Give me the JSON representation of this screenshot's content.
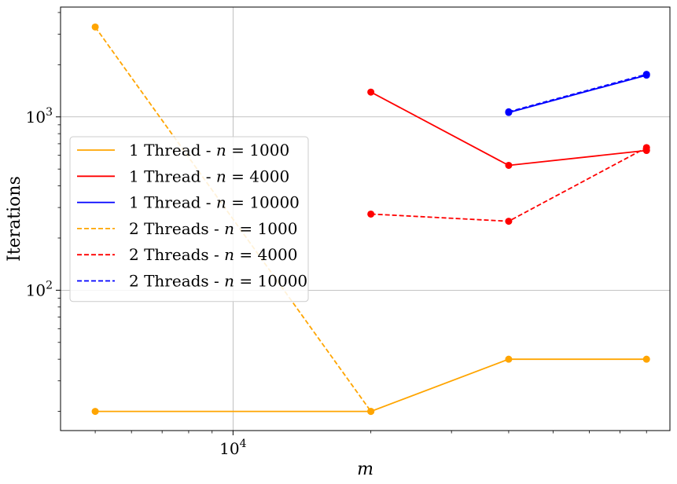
{
  "chart_data": {
    "type": "line",
    "xlabel": "m",
    "ylabel": "Iterations",
    "xscale": "log",
    "yscale": "log",
    "xlim": [
      4200,
      90000
    ],
    "ylim": [
      15.5,
      4300
    ],
    "grid": true,
    "legend_position": "center-left",
    "x_ticks": [
      {
        "value": 10000,
        "base": "10",
        "exp": "4"
      }
    ],
    "y_ticks": [
      {
        "value": 100,
        "base": "10",
        "exp": "2"
      },
      {
        "value": 1000,
        "base": "10",
        "exp": "3"
      }
    ],
    "series": [
      {
        "name_prefix": "1 Thread - ",
        "name_var": "n",
        "name_value": " = 1000",
        "color": "#FFA500",
        "dash": "solid",
        "x": [
          5000,
          20000,
          40000,
          80000
        ],
        "y": [
          20,
          20,
          40,
          40
        ]
      },
      {
        "name_prefix": "1 Thread - ",
        "name_var": "n",
        "name_value": " = 4000",
        "color": "#FF0000",
        "dash": "solid",
        "x": [
          20000,
          40000,
          80000
        ],
        "y": [
          1390,
          525,
          640
        ]
      },
      {
        "name_prefix": "1 Thread - ",
        "name_var": "n",
        "name_value": " = 10000",
        "color": "#0000FF",
        "dash": "solid",
        "x": [
          40000,
          80000
        ],
        "y": [
          1060,
          1740
        ]
      },
      {
        "name_prefix": "2 Threads - ",
        "name_var": "n",
        "name_value": " = 1000",
        "color": "#FFA500",
        "dash": "dashed",
        "x": [
          5000,
          20000
        ],
        "y": [
          3300,
          20
        ]
      },
      {
        "name_prefix": "2 Threads - ",
        "name_var": "n",
        "name_value": " = 4000",
        "color": "#FF0000",
        "dash": "dashed",
        "x": [
          20000,
          40000,
          80000
        ],
        "y": [
          275,
          250,
          665
        ]
      },
      {
        "name_prefix": "2 Threads - ",
        "name_var": "n",
        "name_value": " = 10000",
        "color": "#0000FF",
        "dash": "dashed",
        "x": [
          40000,
          80000
        ],
        "y": [
          1070,
          1760
        ]
      }
    ]
  }
}
